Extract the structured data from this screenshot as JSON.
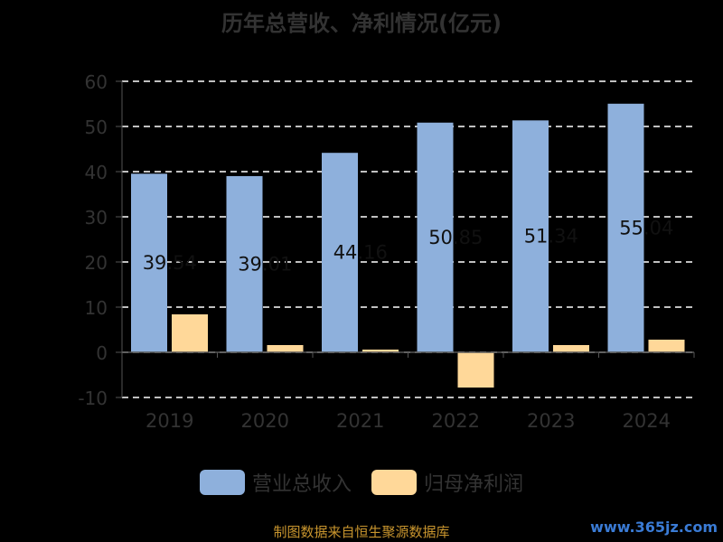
{
  "chart_data": {
    "type": "bar",
    "title": "历年总营收、净利情况(亿元)",
    "categories": [
      "2019",
      "2020",
      "2021",
      "2022",
      "2023",
      "2024"
    ],
    "series": [
      {
        "name": "营业总收入",
        "color": "#8eb0dc",
        "values": [
          39.54,
          39.01,
          44.16,
          50.85,
          51.34,
          55.04
        ],
        "value_labels": [
          "39.54",
          "39.01",
          "44.16",
          "50.85",
          "51.34",
          "55.04"
        ]
      },
      {
        "name": "归母净利润",
        "color": "#ffd899",
        "values": [
          8.4,
          1.6,
          0.6,
          -7.8,
          1.6,
          2.8
        ]
      }
    ],
    "ylim": [
      -10,
      60
    ],
    "yticks": [
      -10,
      0,
      10,
      20,
      30,
      40,
      50,
      60
    ],
    "grid": true,
    "legend_position": "bottom"
  },
  "footer": {
    "source": "制图数据来自恒生聚源数据库",
    "watermark": "www.365jz.com"
  }
}
